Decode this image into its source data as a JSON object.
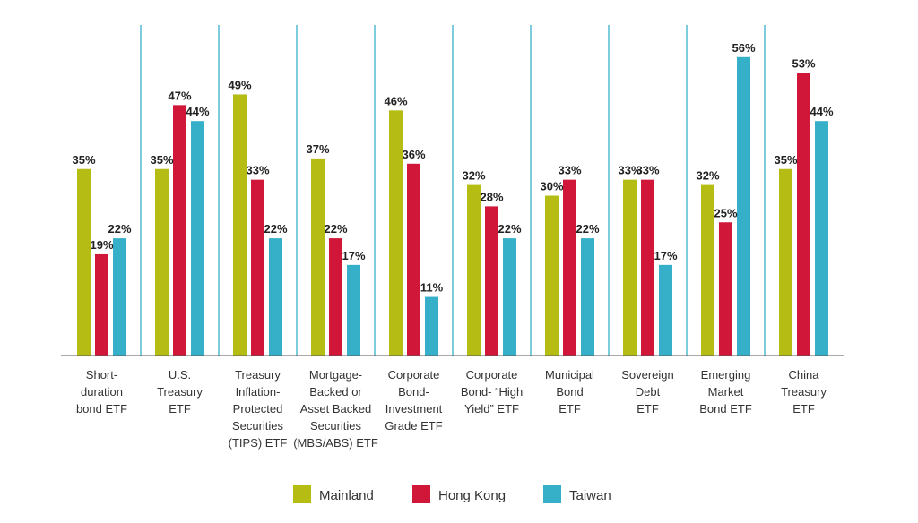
{
  "chart_data": {
    "type": "bar",
    "categories": [
      [
        "Short-",
        "duration",
        "bond ETF"
      ],
      [
        "U.S.",
        "Treasury",
        "ETF"
      ],
      [
        "Treasury",
        "Inflation-",
        "Protected",
        "Securities",
        "(TIPS) ETF"
      ],
      [
        "Mortgage-",
        "Backed or",
        "Asset Backed",
        "Securities",
        "(MBS/ABS) ETF"
      ],
      [
        "Corporate",
        "Bond-",
        "Investment",
        "Grade ETF"
      ],
      [
        "Corporate",
        "Bond- “High",
        "Yield” ETF"
      ],
      [
        "Municipal",
        "Bond",
        "ETF"
      ],
      [
        "Sovereign",
        "Debt",
        "ETF"
      ],
      [
        "Emerging",
        "Market",
        "Bond ETF"
      ],
      [
        "China",
        "Treasury",
        "ETF"
      ]
    ],
    "series": [
      {
        "name": "Mainland",
        "color": "#b5bd14",
        "values": [
          35,
          35,
          49,
          37,
          46,
          32,
          30,
          33,
          32,
          35
        ]
      },
      {
        "name": "Hong Kong",
        "color": "#d0173a",
        "values": [
          19,
          47,
          33,
          22,
          36,
          28,
          33,
          33,
          25,
          53
        ]
      },
      {
        "name": "Taiwan",
        "color": "#36b0c9",
        "values": [
          22,
          44,
          22,
          17,
          11,
          22,
          22,
          17,
          56,
          44
        ]
      }
    ],
    "value_suffix": "%",
    "ylim": [
      0,
      60
    ],
    "grid": false,
    "divider_color": "#36b0c9",
    "legend_position": "bottom-center",
    "title": "",
    "xlabel": "",
    "ylabel": ""
  }
}
